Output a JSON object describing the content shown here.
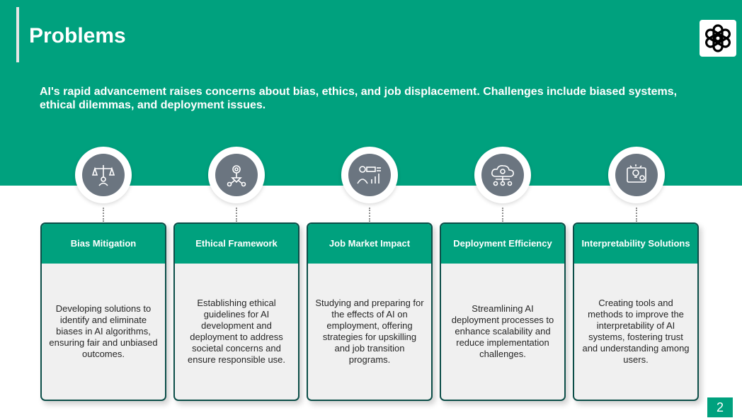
{
  "slide": {
    "title": "Problems",
    "subtitle": "AI's rapid advancement raises concerns about bias, ethics, and job displacement. Challenges include biased systems, ethical dilemmas, and deployment issues.",
    "page_number": "2",
    "colors": {
      "brand_green": "#00a17e",
      "card_border": "#0c4e48",
      "icon_gray": "#6b7580"
    },
    "logo_icon": "openai-logo-icon"
  },
  "cards": [
    {
      "title": "Bias Mitigation",
      "icon": "balance-scale-icon",
      "text": "Developing solutions to identify and eliminate biases in AI algorithms, ensuring fair and unbiased outcomes."
    },
    {
      "title": "Ethical Framework",
      "icon": "gear-network-icon",
      "text": "Establishing ethical guidelines for AI development and deployment to address societal concerns and ensure responsible use."
    },
    {
      "title": "Job Market Impact",
      "icon": "worker-chart-icon",
      "text": "Studying and preparing for the effects of AI on employment, offering strategies for upskilling and job transition programs."
    },
    {
      "title": "Deployment Efficiency",
      "icon": "cloud-network-icon",
      "text": "Streamlining AI deployment processes to enhance scalability and reduce implementation challenges."
    },
    {
      "title": "Interpretability Solutions",
      "icon": "lightbulb-gear-icon",
      "text": "Creating tools and methods to improve the interpretability of AI systems, fostering trust and understanding among users."
    }
  ]
}
